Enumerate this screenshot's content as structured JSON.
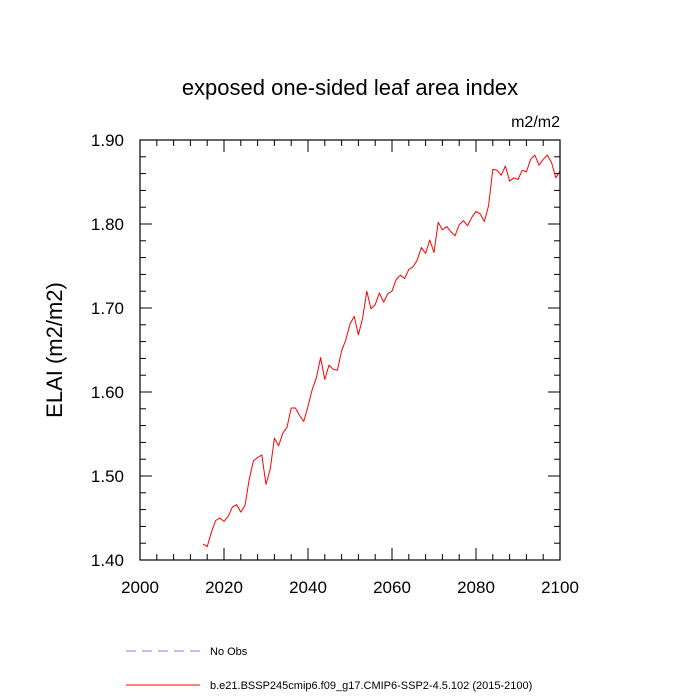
{
  "chart_data": {
    "type": "line",
    "title": "exposed one-sided leaf area index",
    "units": "m2/m2",
    "ylabel": "ELAI  (m2/m2)",
    "xlabel": "",
    "xlim": [
      2000,
      2100
    ],
    "ylim": [
      1.4,
      1.9
    ],
    "grid": false,
    "x_ticks": [
      {
        "value": 2000,
        "label": "2000"
      },
      {
        "value": 2020,
        "label": "2020"
      },
      {
        "value": 2040,
        "label": "2040"
      },
      {
        "value": 2060,
        "label": "2060"
      },
      {
        "value": 2080,
        "label": "2080"
      },
      {
        "value": 2100,
        "label": "2100"
      }
    ],
    "y_ticks": [
      {
        "value": 1.4,
        "label": "1.40"
      },
      {
        "value": 1.5,
        "label": "1.50"
      },
      {
        "value": 1.6,
        "label": "1.60"
      },
      {
        "value": 1.7,
        "label": "1.70"
      },
      {
        "value": 1.8,
        "label": "1.80"
      },
      {
        "value": 1.9,
        "label": "1.90"
      }
    ],
    "legend": {
      "placement": "below",
      "entries": [
        {
          "label": "No Obs",
          "color": "#7f7fff",
          "style": "dashed"
        },
        {
          "label": "b.e21.BSSP245cmip6.f09_g17.CMIP6-SSP2-4.5.102 (2015-2100)",
          "color": "#ff0000",
          "style": "solid"
        }
      ]
    },
    "series": [
      {
        "name": "b.e21.BSSP245cmip6.f09_g17.CMIP6-SSP2-4.5.102 (2015-2100)",
        "color": "#ff0000",
        "x": [
          2015,
          2016,
          2017,
          2018,
          2019,
          2020,
          2021,
          2022,
          2023,
          2024,
          2025,
          2026,
          2027,
          2028,
          2029,
          2030,
          2031,
          2032,
          2033,
          2034,
          2035,
          2036,
          2037,
          2038,
          2039,
          2040,
          2041,
          2042,
          2043,
          2044,
          2045,
          2046,
          2047,
          2048,
          2049,
          2050,
          2051,
          2052,
          2053,
          2054,
          2055,
          2056,
          2057,
          2058,
          2059,
          2060,
          2061,
          2062,
          2063,
          2064,
          2065,
          2066,
          2067,
          2068,
          2069,
          2070,
          2071,
          2072,
          2073,
          2074,
          2075,
          2076,
          2077,
          2078,
          2079,
          2080,
          2081,
          2082,
          2083,
          2084,
          2085,
          2086,
          2087,
          2088,
          2089,
          2090,
          2091,
          2092,
          2093,
          2094,
          2095,
          2096,
          2097,
          2098,
          2099,
          2100
        ],
        "values": [
          1.419,
          1.416,
          1.433,
          1.447,
          1.45,
          1.446,
          1.452,
          1.463,
          1.466,
          1.457,
          1.465,
          1.496,
          1.518,
          1.522,
          1.525,
          1.49,
          1.508,
          1.545,
          1.536,
          1.551,
          1.558,
          1.581,
          1.581,
          1.572,
          1.565,
          1.583,
          1.603,
          1.617,
          1.641,
          1.615,
          1.632,
          1.627,
          1.626,
          1.649,
          1.662,
          1.681,
          1.69,
          1.668,
          1.688,
          1.72,
          1.699,
          1.704,
          1.718,
          1.707,
          1.717,
          1.72,
          1.734,
          1.739,
          1.735,
          1.746,
          1.749,
          1.757,
          1.772,
          1.765,
          1.781,
          1.766,
          1.802,
          1.793,
          1.797,
          1.791,
          1.786,
          1.799,
          1.804,
          1.798,
          1.808,
          1.815,
          1.812,
          1.803,
          1.822,
          1.865,
          1.864,
          1.858,
          1.869,
          1.851,
          1.855,
          1.853,
          1.864,
          1.862,
          1.877,
          1.882,
          1.87,
          1.877,
          1.882,
          1.873,
          1.855,
          1.863
        ]
      }
    ]
  }
}
